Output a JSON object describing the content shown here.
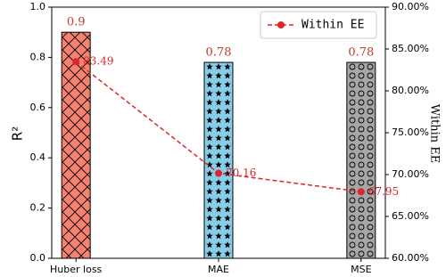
{
  "chart_data": {
    "type": "bar",
    "categories": [
      "Huber loss",
      "MAE",
      "MSE"
    ],
    "series": [
      {
        "type": "bar",
        "values": [
          0.9,
          0.78,
          0.78
        ],
        "colors": [
          "#f4826f",
          "#87ceeb",
          "#a6a6a6"
        ],
        "hatches": [
          "x",
          "*",
          "o"
        ]
      },
      {
        "type": "line",
        "name": "Within EE",
        "color": "#e0262a",
        "values": [
          83.49,
          70.16,
          67.95
        ],
        "axis": "y2"
      }
    ],
    "y_label": "R²",
    "y2_label": "Within EE",
    "ylim": [
      0,
      1
    ],
    "yticks": [
      {
        "value": 0,
        "label": "0.0"
      },
      {
        "value": 0.2,
        "label": "0.2"
      },
      {
        "value": 0.4,
        "label": "0.4"
      },
      {
        "value": 0.6,
        "label": "0.6"
      },
      {
        "value": 0.8,
        "label": "0.8"
      },
      {
        "value": 1,
        "label": "1.0"
      }
    ],
    "y2lim": [
      60,
      90
    ],
    "y2ticks": [
      {
        "value": 60,
        "label": "60.00%"
      },
      {
        "value": 65,
        "label": "65.00%"
      },
      {
        "value": 70,
        "label": "70.00%"
      },
      {
        "value": 75,
        "label": "75.00%"
      },
      {
        "value": 80,
        "label": "80.00%"
      },
      {
        "value": 85,
        "label": "85.00%"
      },
      {
        "value": 90,
        "label": "90.00%"
      }
    ],
    "legend": "upper right",
    "grid": false
  }
}
